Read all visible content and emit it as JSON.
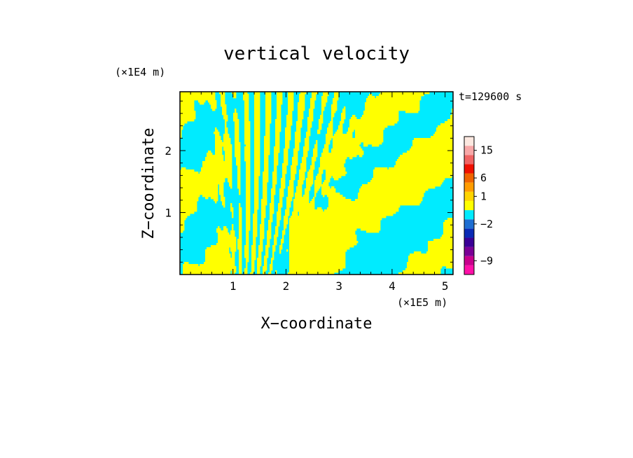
{
  "chart_data": {
    "type": "heatmap",
    "title": "vertical velocity",
    "xlabel": "X−coordinate",
    "ylabel": "Z−coordinate",
    "x_unit": "(×1E5 m)",
    "y_unit": "(×1E4 m)",
    "time_label": "t=129600 s",
    "xlim": [
      0,
      5.15
    ],
    "ylim": [
      0,
      2.95
    ],
    "x_ticks": [
      1,
      2,
      3,
      4,
      5
    ],
    "y_ticks": [
      1,
      2
    ],
    "grid": false,
    "colorbar": {
      "levels": [
        {
          "color": "#ff10a8"
        },
        {
          "color": "#c8008c",
          "label": "−9"
        },
        {
          "color": "#7a0096"
        },
        {
          "color": "#3a0096"
        },
        {
          "color": "#0a2ab5"
        },
        {
          "color": "#1e6ed2",
          "label": "−2"
        },
        {
          "color": "#00ebff"
        },
        {
          "color": "#ffff00"
        },
        {
          "color": "#ffd400",
          "label": "1"
        },
        {
          "color": "#ff9c00"
        },
        {
          "color": "#f06400",
          "label": "6"
        },
        {
          "color": "#f01000"
        },
        {
          "color": "#f06464"
        },
        {
          "color": "#f8a8a8",
          "label": "15"
        },
        {
          "color": "#fce8e0"
        }
      ]
    },
    "field_colors": {
      "positive": "#ffff00",
      "negative": "#00ebff",
      "strong_negative": "#1e2ad2"
    }
  }
}
